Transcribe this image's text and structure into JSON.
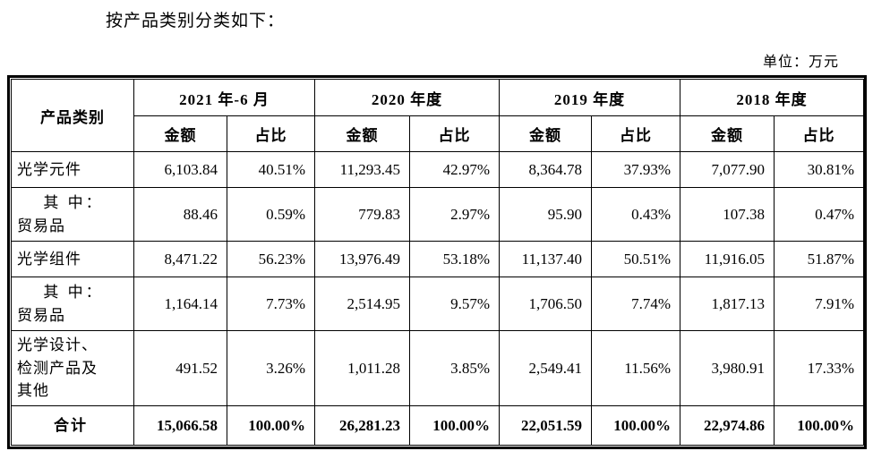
{
  "page": {
    "intro_text": "按产品类别分类如下：",
    "unit_label": "单位：万元"
  },
  "table": {
    "corner_header": "产品类别",
    "amount_header": "金额",
    "ratio_header": "占比",
    "periods": [
      "2021 年-6 月",
      "2020 年度",
      "2019 年度",
      "2018 年度"
    ],
    "rows": [
      {
        "variant": "item",
        "label_lines": [
          "光学元件"
        ],
        "values": [
          "6,103.84",
          "40.51%",
          "11,293.45",
          "42.97%",
          "8,364.78",
          "37.93%",
          "7,077.90",
          "30.81%"
        ]
      },
      {
        "variant": "breakdown",
        "label_lines": [
          "其 中：",
          "贸易品"
        ],
        "values": [
          "88.46",
          "0.59%",
          "779.83",
          "2.97%",
          "95.90",
          "0.43%",
          "107.38",
          "0.47%"
        ]
      },
      {
        "variant": "item",
        "label_lines": [
          "光学组件"
        ],
        "values": [
          "8,471.22",
          "56.23%",
          "13,976.49",
          "53.18%",
          "11,137.40",
          "50.51%",
          "11,916.05",
          "51.87%"
        ]
      },
      {
        "variant": "breakdown",
        "label_lines": [
          "其 中：",
          "贸易品"
        ],
        "values": [
          "1,164.14",
          "7.73%",
          "2,514.95",
          "9.57%",
          "1,706.50",
          "7.74%",
          "1,817.13",
          "7.91%"
        ]
      },
      {
        "variant": "item",
        "label_lines": [
          "光学设计、",
          "检测产品及",
          "其他"
        ],
        "values": [
          "491.52",
          "3.26%",
          "1,011.28",
          "3.85%",
          "2,549.41",
          "11.56%",
          "3,980.91",
          "17.33%"
        ]
      },
      {
        "variant": "total",
        "label_lines": [
          "合计"
        ],
        "values": [
          "15,066.58",
          "100.00%",
          "26,281.23",
          "100.00%",
          "22,051.59",
          "100.00%",
          "22,974.86",
          "100.00%"
        ]
      }
    ]
  }
}
